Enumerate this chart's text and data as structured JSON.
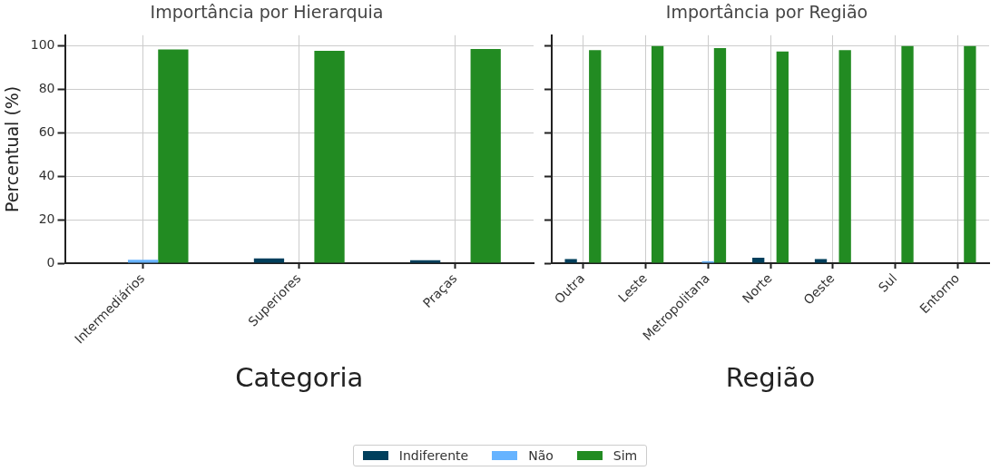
{
  "chart_data": [
    {
      "type": "bar",
      "title": "Importância por Hierarquia",
      "xlabel": "Categoria",
      "ylabel": "Percentual (%)",
      "categories": [
        "Intermediários",
        "Superiores",
        "Praças"
      ],
      "series": [
        {
          "name": "Indiferente",
          "color": "#003f5c",
          "values": [
            0,
            2.2,
            1.4
          ]
        },
        {
          "name": "Não",
          "color": "#66b3ff",
          "values": [
            1.6,
            0,
            0
          ]
        },
        {
          "name": "Sim",
          "color": "#228b22",
          "values": [
            98.4,
            97.8,
            98.6
          ]
        }
      ],
      "ylim": [
        0,
        105
      ],
      "yticks": [
        0,
        20,
        40,
        60,
        80,
        100
      ],
      "grid": true,
      "legend": "bottom"
    },
    {
      "type": "bar",
      "title": "Importância por Região",
      "xlabel": "Região",
      "categories": [
        "Outra",
        "Leste",
        "Metropolitana",
        "Norte",
        "Oeste",
        "Sul",
        "Entorno"
      ],
      "series": [
        {
          "name": "Indiferente",
          "color": "#003f5c",
          "values": [
            1.9,
            0,
            0,
            2.5,
            1.9,
            0,
            0
          ]
        },
        {
          "name": "Não",
          "color": "#66b3ff",
          "values": [
            0,
            0,
            0.9,
            0,
            0,
            0,
            0
          ]
        },
        {
          "name": "Sim",
          "color": "#228b22",
          "values": [
            98.1,
            100,
            99.1,
            97.5,
            98.1,
            100,
            100
          ]
        }
      ],
      "ylim": [
        0,
        105
      ],
      "yticks": [
        0,
        20,
        40,
        60,
        80,
        100
      ],
      "grid": true,
      "tick_labels": "x",
      "legend": "bottom"
    }
  ]
}
